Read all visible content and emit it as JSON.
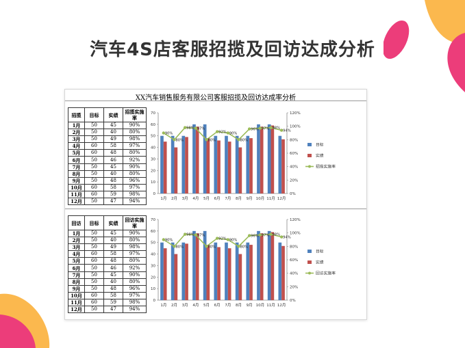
{
  "slide": {
    "title": "汽车4S店客服招揽及回访达成分析"
  },
  "sheet": {
    "title": "XX汽车销售服务有限公司客服招揽及回访达成率分析"
  },
  "colors": {
    "target_bar": "#4f81bd",
    "actual_bar": "#c0504d",
    "rate_line": "#9bbb59",
    "deco_orange": "#fbb03b",
    "deco_pink": "#ec3d7a"
  },
  "tables": [
    {
      "headers": [
        "招揽",
        "目标",
        "实绩",
        "招揽实施率"
      ],
      "rows": [
        [
          "1月",
          "50",
          "45",
          "90%"
        ],
        [
          "2月",
          "50",
          "40",
          "80%"
        ],
        [
          "3月",
          "50",
          "49",
          "98%"
        ],
        [
          "4月",
          "60",
          "58",
          "97%"
        ],
        [
          "5月",
          "60",
          "48",
          "80%"
        ],
        [
          "6月",
          "50",
          "46",
          "92%"
        ],
        [
          "7月",
          "50",
          "45",
          "90%"
        ],
        [
          "8月",
          "50",
          "40",
          "80%"
        ],
        [
          "9月",
          "50",
          "48",
          "96%"
        ],
        [
          "10月",
          "60",
          "58",
          "97%"
        ],
        [
          "11月",
          "60",
          "59",
          "98%"
        ],
        [
          "12月",
          "50",
          "47",
          "94%"
        ]
      ]
    },
    {
      "headers": [
        "回访",
        "目标",
        "实绩",
        "回访实施率"
      ],
      "rows": [
        [
          "1月",
          "50",
          "45",
          "90%"
        ],
        [
          "2月",
          "50",
          "40",
          "80%"
        ],
        [
          "3月",
          "50",
          "49",
          "98%"
        ],
        [
          "4月",
          "60",
          "58",
          "97%"
        ],
        [
          "5月",
          "60",
          "48",
          "80%"
        ],
        [
          "6月",
          "50",
          "46",
          "92%"
        ],
        [
          "7月",
          "50",
          "45",
          "90%"
        ],
        [
          "8月",
          "50",
          "40",
          "80%"
        ],
        [
          "9月",
          "50",
          "48",
          "96%"
        ],
        [
          "10月",
          "60",
          "58",
          "97%"
        ],
        [
          "11月",
          "60",
          "59",
          "98%"
        ],
        [
          "12月",
          "50",
          "47",
          "94%"
        ]
      ]
    }
  ],
  "chart_data": [
    {
      "type": "bar",
      "categories": [
        "1月",
        "2月",
        "3月",
        "4月",
        "5月",
        "6月",
        "7月",
        "8月",
        "9月",
        "10月",
        "11月",
        "12月"
      ],
      "series": [
        {
          "name": "目标",
          "type": "bar",
          "axis": "left",
          "values": [
            50,
            50,
            50,
            60,
            60,
            50,
            50,
            50,
            50,
            60,
            60,
            50
          ]
        },
        {
          "name": "实绩",
          "type": "bar",
          "axis": "left",
          "values": [
            45,
            40,
            49,
            58,
            48,
            46,
            45,
            40,
            48,
            58,
            59,
            47
          ]
        },
        {
          "name": "招揽实施率",
          "type": "line",
          "axis": "right",
          "values": [
            90,
            80,
            98,
            97,
            80,
            92,
            90,
            80,
            96,
            97,
            98,
            94
          ]
        }
      ],
      "data_labels": [
        "90%",
        "80%",
        "98%",
        "97%",
        "80%",
        "92%",
        "90%",
        "80%",
        "96%",
        "97%",
        "98%",
        "94%"
      ],
      "ylim": [
        0,
        70
      ],
      "yticks": [
        "0",
        "10",
        "20",
        "30",
        "40",
        "50",
        "60",
        "70"
      ],
      "y2lim": [
        0,
        120
      ],
      "y2ticks": [
        "0%",
        "20%",
        "40%",
        "60%",
        "80%",
        "100%",
        "120%"
      ],
      "legend": "right",
      "grid": false
    },
    {
      "type": "bar",
      "categories": [
        "1月",
        "2月",
        "3月",
        "4月",
        "5月",
        "6月",
        "7月",
        "8月",
        "9月",
        "10月",
        "11月",
        "12月"
      ],
      "series": [
        {
          "name": "目标",
          "type": "bar",
          "axis": "left",
          "values": [
            50,
            50,
            50,
            60,
            60,
            50,
            50,
            50,
            50,
            60,
            60,
            50
          ]
        },
        {
          "name": "实绩",
          "type": "bar",
          "axis": "left",
          "values": [
            45,
            40,
            49,
            58,
            48,
            46,
            45,
            40,
            48,
            58,
            59,
            47
          ]
        },
        {
          "name": "回访实施率",
          "type": "line",
          "axis": "right",
          "values": [
            90,
            80,
            98,
            97,
            80,
            92,
            90,
            80,
            96,
            97,
            98,
            94
          ]
        }
      ],
      "data_labels": [
        "90%",
        "80%",
        "98%",
        "97%",
        "80%",
        "92%",
        "90%",
        "80%",
        "96%",
        "97%",
        "98%",
        "94%"
      ],
      "ylim": [
        0,
        70
      ],
      "yticks": [
        "0",
        "10",
        "20",
        "30",
        "40",
        "50",
        "60",
        "70"
      ],
      "y2lim": [
        0,
        120
      ],
      "y2ticks": [
        "0%",
        "20%",
        "40%",
        "60%",
        "80%",
        "100%",
        "120%"
      ],
      "legend": "right",
      "grid": false
    }
  ]
}
